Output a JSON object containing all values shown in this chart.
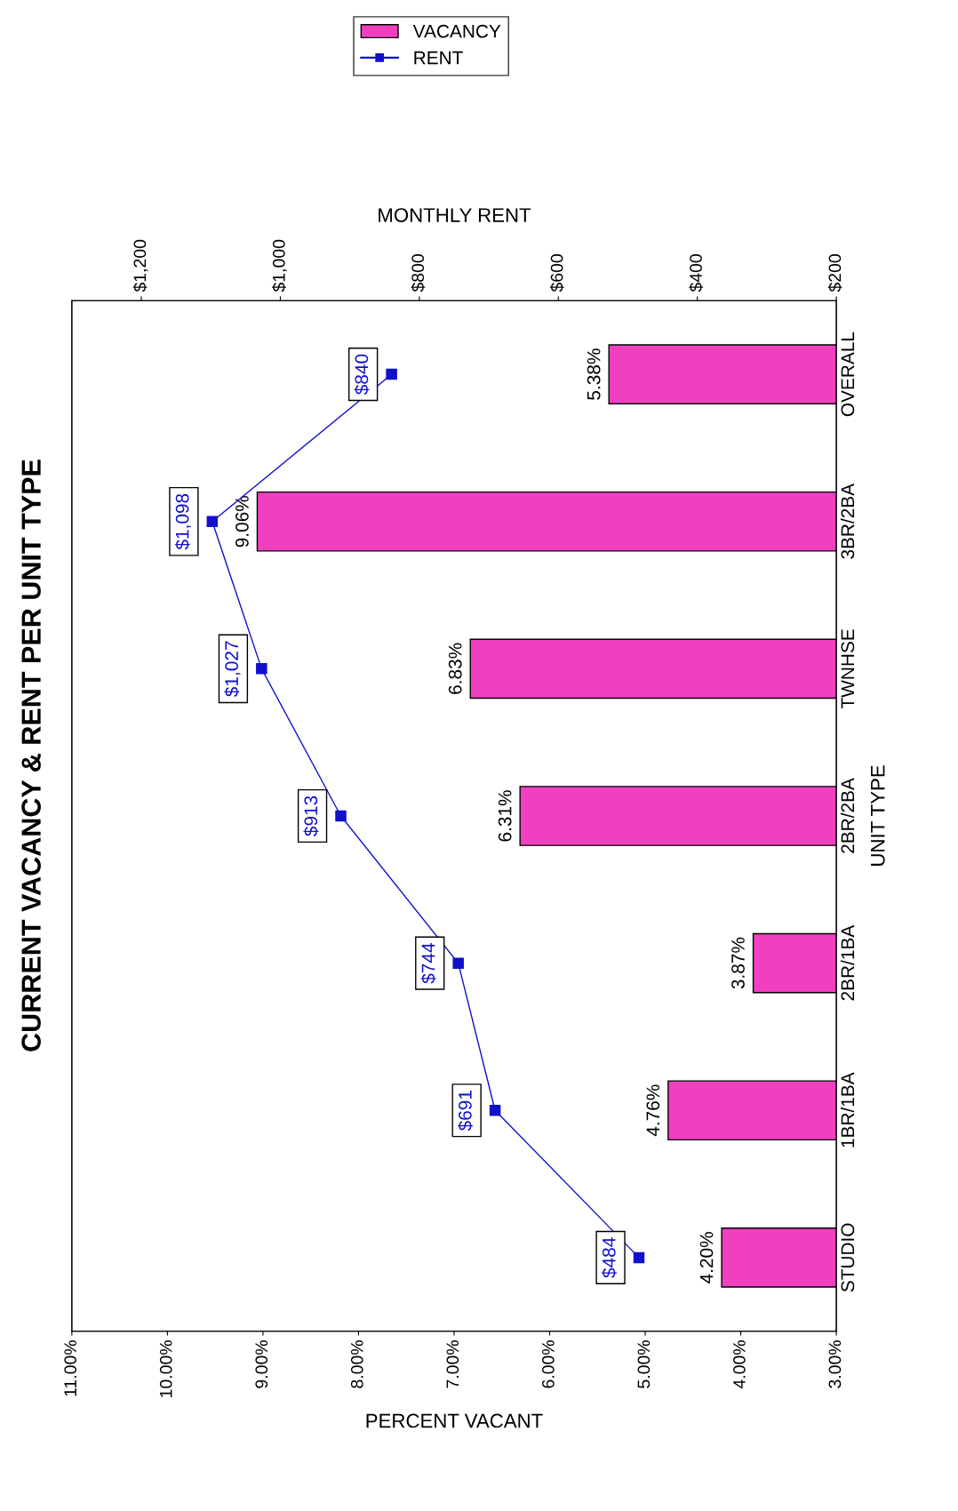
{
  "chart_data": {
    "type": "bar",
    "orientation": "horizontal",
    "title": "CURRENT VACANCY & RENT PER UNIT TYPE",
    "xlabel": "PERCENT VACANT",
    "x2label": "MONTHLY RENT",
    "ylabel": "UNIT TYPE",
    "categories": [
      "OVERALL",
      "3BR/2BA",
      "TWNHSE",
      "2BR/2BA",
      "2BR/1BA",
      "1BR/1BA",
      "STUDIO"
    ],
    "series": [
      {
        "name": "VACANCY",
        "color": "#f040c0",
        "values": [
          5.38,
          9.06,
          6.83,
          6.31,
          3.87,
          4.76,
          4.2
        ],
        "value_labels": [
          "5.38%",
          "9.06%",
          "6.83%",
          "6.31%",
          "3.87%",
          "4.76%",
          "4.20%"
        ]
      },
      {
        "name": "RENT",
        "type": "line",
        "axis": "x2",
        "color": "#1010cc",
        "marker": "square",
        "values": [
          840,
          1098,
          1027,
          913,
          744,
          691,
          484
        ],
        "value_labels": [
          "$840",
          "$1,098",
          "$1,027",
          "$913",
          "$744",
          "$691",
          "$484"
        ]
      }
    ],
    "xlim": [
      11,
      3
    ],
    "xticks": [
      {
        "value": 11,
        "label": "11.00%"
      },
      {
        "value": 10,
        "label": "10.00%"
      },
      {
        "value": 9,
        "label": "9.00%"
      },
      {
        "value": 8,
        "label": "8.00%"
      },
      {
        "value": 7,
        "label": "7.00%"
      },
      {
        "value": 6,
        "label": "6.00%"
      },
      {
        "value": 5,
        "label": "5.00%"
      },
      {
        "value": 4,
        "label": "4.00%"
      },
      {
        "value": 3,
        "label": "3.00%"
      }
    ],
    "x2lim": [
      1300,
      200
    ],
    "x2ticks": [
      {
        "value": 1200,
        "label": "$1,200"
      },
      {
        "value": 1000,
        "label": "$1,000"
      },
      {
        "value": 800,
        "label": "$800"
      },
      {
        "value": 600,
        "label": "$600"
      },
      {
        "value": 400,
        "label": "$400"
      },
      {
        "value": 200,
        "label": "$200"
      }
    ],
    "grid": false,
    "legend": "top"
  }
}
